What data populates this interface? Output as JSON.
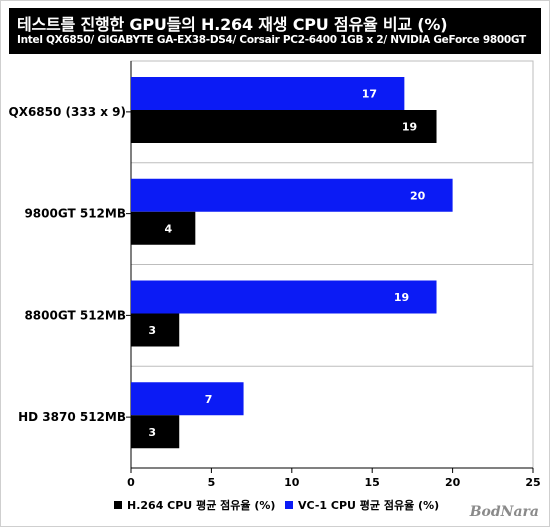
{
  "header": {
    "title": "테스트를 진행한 GPU들의 H.264 재생 CPU 점유율 비교 (%)",
    "subtitle": "Intel QX6850/ GIGABYTE GA-EX38-DS4/ Corsair PC2-6400 1GB x 2/ NVIDIA GeForce 9800GT"
  },
  "watermark": "BodNara",
  "chart_data": {
    "type": "bar",
    "orientation": "horizontal",
    "title": "테스트를 진행한 GPU들의 H.264 재생 CPU 점유율 비교 (%)",
    "subtitle": "Intel QX6850/ GIGABYTE GA-EX38-DS4/ Corsair PC2-6400 1GB x 2/ NVIDIA GeForce 9800GT",
    "categories": [
      "QX6850 (333 x 9)",
      "9800GT 512MB",
      "8800GT 512MB",
      "HD 3870 512MB"
    ],
    "series": [
      {
        "name": "VC-1 CPU 평균 점유율 (%)",
        "color": "#0b1bf5",
        "values": [
          17,
          20,
          19,
          7
        ]
      },
      {
        "name": "H.264 CPU 평균 점유율 (%)",
        "color": "#000000",
        "values": [
          19,
          4,
          3,
          3
        ]
      }
    ],
    "xlim": [
      0,
      25
    ],
    "xticks": [
      0,
      5,
      10,
      15,
      20,
      25
    ],
    "grid": true,
    "legend_position": "bottom",
    "legend_order": [
      "H.264 CPU 평균 점유율 (%)",
      "VC-1 CPU 평균 점유율 (%)"
    ]
  }
}
